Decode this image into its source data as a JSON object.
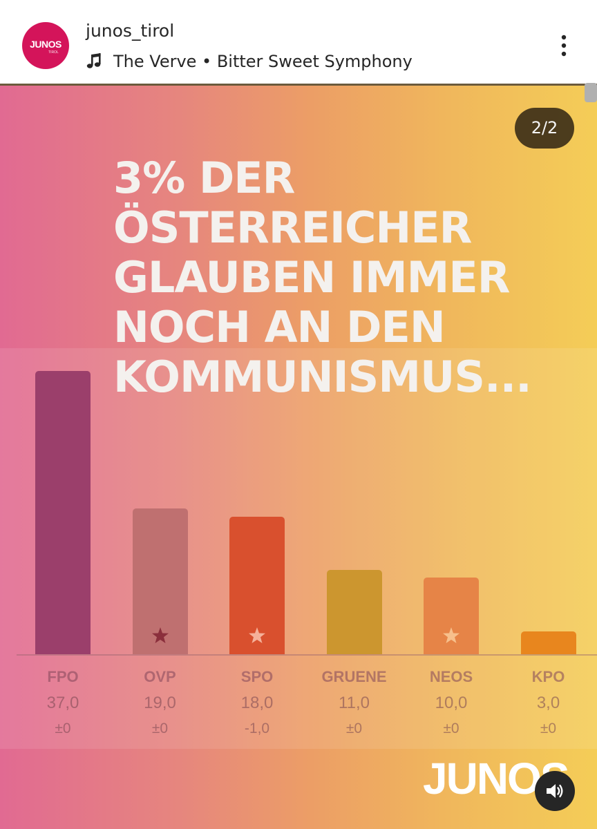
{
  "post_header": {
    "avatar_text": "JUNOS",
    "avatar_subtext": "TIROL",
    "username": "junos_tirol",
    "music": "The Verve • Bitter Sweet Symphony"
  },
  "post": {
    "slide_counter": "2/2",
    "headline_lines": [
      "3% DER",
      "ÖSTERREICHER",
      "GLAUBEN IMMER",
      "NOCH AN DEN",
      "KOMMUNISMUS..."
    ],
    "brand": "JUNOS"
  },
  "colors": {
    "avatar": "#d4145a",
    "FPO": "#9b3f6b",
    "OVP": "#bf7070",
    "SPO": "#d9502e",
    "GRUENE": "#cc962f",
    "NEOS": "#e68447",
    "KPO": "#e8861e"
  },
  "chart_data": {
    "type": "bar",
    "categories": [
      "FPO",
      "OVP",
      "SPO",
      "GRUENE",
      "NEOS",
      "KPO"
    ],
    "values": [
      37.0,
      19.0,
      18.0,
      11.0,
      10.0,
      3.0
    ],
    "value_labels": [
      "37,0",
      "19,0",
      "18,0",
      "11,0",
      "10,0",
      "3,0"
    ],
    "change_labels": [
      "±0",
      "±0",
      "-1,0",
      "±0",
      "±0",
      "±0"
    ],
    "stars": [
      false,
      true,
      true,
      false,
      true,
      false
    ],
    "ylim": [
      0,
      37
    ]
  }
}
